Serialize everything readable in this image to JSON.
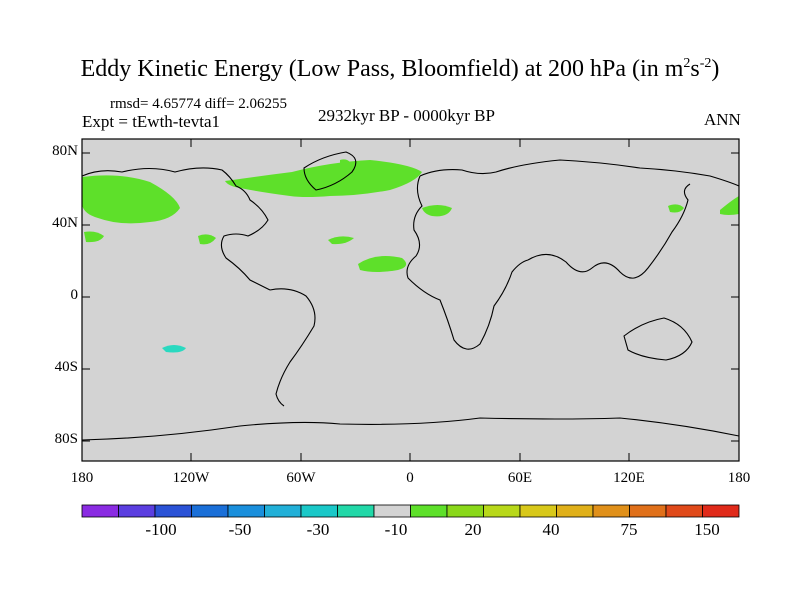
{
  "title": {
    "main": "Eddy Kinetic Energy (Low Pass, Bloomfield) at 200 hPa (in m",
    "sup1": "2",
    "mid": "s",
    "sup2": "-2",
    "close": ")"
  },
  "stats": "rmsd= 4.65774  diff= 2.06255",
  "expt": "Expt = tEwth-tevta1",
  "period": "2932kyr BP - 0000kyr BP",
  "season": "ANN",
  "map": {
    "lat_labels": [
      "80N",
      "40N",
      "0",
      "40S",
      "80S"
    ],
    "lon_labels": [
      "180",
      "120W",
      "60W",
      "0",
      "60E",
      "120E",
      "180"
    ],
    "background_color": "#d3d3d3",
    "positive_color": "#5ee02a",
    "negative_color": "#2ad9c0"
  },
  "colorbar": {
    "colors": [
      "#8a2be2",
      "#5b3ee0",
      "#2a52d6",
      "#1a6fd8",
      "#1a8fdc",
      "#22b0d8",
      "#1ac8c8",
      "#22d8a8",
      "#d3d3d3",
      "#5ee02a",
      "#8ad81a",
      "#b8d81a",
      "#d8c81a",
      "#e0b01a",
      "#e0901a",
      "#e0701a",
      "#e04a1a",
      "#e02a1a"
    ],
    "labels": [
      "-100",
      "-50",
      "-30",
      "-10",
      "20",
      "40",
      "75",
      "150"
    ]
  }
}
